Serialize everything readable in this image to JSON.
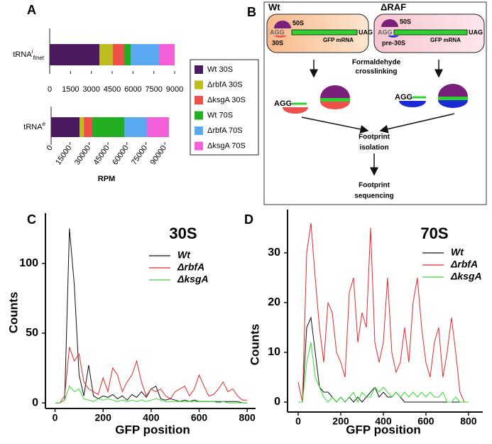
{
  "chart_data": [
    {
      "type": "bar",
      "panel_label": "A",
      "orientation": "horizontal",
      "stacked": true,
      "categories": [
        "tRNA"
      ],
      "category_sup": [
        "i"
      ],
      "category_sub": [
        "fmet"
      ],
      "xlim": [
        0,
        9000
      ],
      "xticks": [
        0,
        1500,
        3000,
        4500,
        6000,
        7500,
        9000
      ],
      "series": [
        {
          "name": "Wt 30S",
          "color": "#4b1a5e",
          "values": [
            3580
          ]
        },
        {
          "name": "ΔrbfA 30S",
          "color": "#bdbd1e",
          "values": [
            970
          ]
        },
        {
          "name": "ΔksgA 30S",
          "color": "#f0504a",
          "values": [
            820
          ]
        },
        {
          "name": "Wt 70S",
          "color": "#22b022",
          "values": [
            460
          ]
        },
        {
          "name": "ΔrbfA 70S",
          "color": "#5aa8f0",
          "values": [
            2045
          ]
        },
        {
          "name": "ΔksgA 70S",
          "color": "#f25fd8",
          "values": [
            1125
          ]
        }
      ]
    },
    {
      "type": "bar",
      "orientation": "horizontal",
      "stacked": true,
      "categories": [
        "tRNA"
      ],
      "category_sup": [
        "e"
      ],
      "xlabel": "RPM",
      "xlim": [
        0,
        95000
      ],
      "xticks": [
        0,
        15000,
        30000,
        45000,
        60000,
        75000,
        90000
      ],
      "series": [
        {
          "color": "#4b1a5e",
          "values": [
            22500
          ]
        },
        {
          "color": "#bdbd1e",
          "values": [
            3400
          ]
        },
        {
          "color": "#f0504a",
          "values": [
            6700
          ]
        },
        {
          "color": "#22b022",
          "values": [
            25300
          ]
        },
        {
          "color": "#5aa8f0",
          "values": [
            18000
          ]
        },
        {
          "color": "#f25fd8",
          "values": [
            17400
          ]
        }
      ]
    },
    {
      "type": "line",
      "panel_label": "C",
      "title": "30S",
      "xlabel": "GFP position",
      "ylabel": "Counts",
      "xlim": [
        -40,
        835
      ],
      "ylim": [
        -4,
        136
      ],
      "xticks": [
        0,
        200,
        400,
        600,
        800
      ],
      "yticks": [
        0,
        50,
        100
      ],
      "x": [
        0,
        20,
        40,
        60,
        80,
        100,
        120,
        140,
        160,
        180,
        200,
        220,
        240,
        260,
        280,
        300,
        320,
        340,
        360,
        380,
        400,
        420,
        440,
        460,
        480,
        500,
        520,
        540,
        560,
        580,
        600,
        620,
        640,
        660,
        680,
        700,
        720,
        740,
        760,
        780,
        800
      ],
      "series": [
        {
          "name": "Wt",
          "color": "#111111",
          "values": [
            0,
            0,
            2,
            125,
            85,
            20,
            5,
            27,
            5,
            3,
            5,
            4,
            6,
            3,
            5,
            2,
            6,
            4,
            8,
            4,
            10,
            12,
            3,
            2,
            3,
            2,
            1,
            2,
            1,
            2,
            1,
            1,
            1,
            1,
            1,
            1,
            1,
            1,
            1,
            0,
            0
          ]
        },
        {
          "name": "ΔrbfA",
          "color": "#e8262b",
          "values": [
            0,
            0,
            5,
            40,
            30,
            35,
            15,
            10,
            8,
            6,
            18,
            8,
            25,
            20,
            8,
            15,
            20,
            30,
            15,
            5,
            10,
            8,
            10,
            5,
            3,
            8,
            10,
            12,
            5,
            10,
            20,
            12,
            5,
            6,
            10,
            15,
            8,
            10,
            5,
            2,
            2
          ]
        },
        {
          "name": "ΔksgA",
          "color": "#33dd33",
          "values": [
            0,
            0,
            2,
            12,
            8,
            10,
            3,
            2,
            1,
            3,
            2,
            3,
            2,
            1,
            2,
            1,
            2,
            1,
            2,
            1,
            2,
            3,
            2,
            1,
            1,
            1,
            1,
            1,
            1,
            1,
            1,
            1,
            1,
            1,
            0,
            1,
            0,
            0,
            0,
            0,
            0
          ]
        }
      ]
    },
    {
      "type": "line",
      "panel_label": "D",
      "title": "70S",
      "xlabel": "GFP position",
      "ylabel": "Counts",
      "xlim": [
        -50,
        867
      ],
      "ylim": [
        -2,
        38.7
      ],
      "xticks": [
        0,
        200,
        400,
        600,
        800
      ],
      "yticks": [
        0,
        10,
        20,
        30
      ],
      "x": [
        0,
        20,
        40,
        60,
        80,
        100,
        120,
        140,
        160,
        180,
        200,
        220,
        240,
        260,
        280,
        300,
        320,
        340,
        360,
        380,
        400,
        420,
        440,
        460,
        480,
        500,
        520,
        540,
        560,
        580,
        600,
        620,
        640,
        660,
        680,
        700,
        720,
        740,
        760,
        780,
        800
      ],
      "series": [
        {
          "name": "Wt",
          "color": "#111111",
          "values": [
            0,
            0,
            15,
            17,
            10,
            3,
            2,
            2,
            1,
            0,
            1,
            0,
            1,
            0,
            1,
            0,
            1,
            2,
            3,
            1,
            2,
            1,
            1,
            2,
            1,
            0,
            0,
            0,
            0,
            0,
            0,
            0,
            0,
            0,
            0,
            0,
            0,
            0,
            0,
            0,
            0
          ]
        },
        {
          "name": "ΔrbfA",
          "color": "#e8262b",
          "values": [
            4,
            0,
            30,
            36,
            25,
            15,
            8,
            20,
            18,
            10,
            8,
            5,
            22,
            25,
            12,
            18,
            15,
            35,
            12,
            8,
            12,
            25,
            10,
            6,
            8,
            15,
            8,
            20,
            25,
            15,
            8,
            5,
            12,
            15,
            5,
            10,
            17,
            10,
            2,
            0,
            0
          ]
        },
        {
          "name": "ΔksgA",
          "color": "#33dd33",
          "values": [
            0,
            0,
            8,
            12,
            5,
            3,
            1,
            0,
            1,
            0,
            1,
            0,
            1,
            2,
            0,
            2,
            1,
            1,
            3,
            2,
            3,
            2,
            1,
            2,
            1,
            2,
            1,
            2,
            1,
            2,
            1,
            2,
            1,
            1,
            2,
            0,
            0,
            1,
            0,
            0,
            0
          ]
        }
      ]
    }
  ],
  "diagram": {
    "panel_label": "B",
    "left_title": "Wt",
    "right_title": "ΔRAF",
    "large_subunit": [
      "50S",
      "50S"
    ],
    "start_codon": [
      "AGG",
      "AGG",
      "AGG",
      "AGG"
    ],
    "stop_codon": [
      "UAG",
      "UAG"
    ],
    "mrna": [
      "GFP mRNA",
      "GFP mRNA"
    ],
    "small_subunit": [
      "30S",
      "pre-30S"
    ],
    "step1": [
      "Formaldehyde",
      "crosslinking"
    ],
    "step2": [
      "Footprint",
      "isolation"
    ],
    "step3": [
      "Footprint",
      "sequencing"
    ]
  }
}
